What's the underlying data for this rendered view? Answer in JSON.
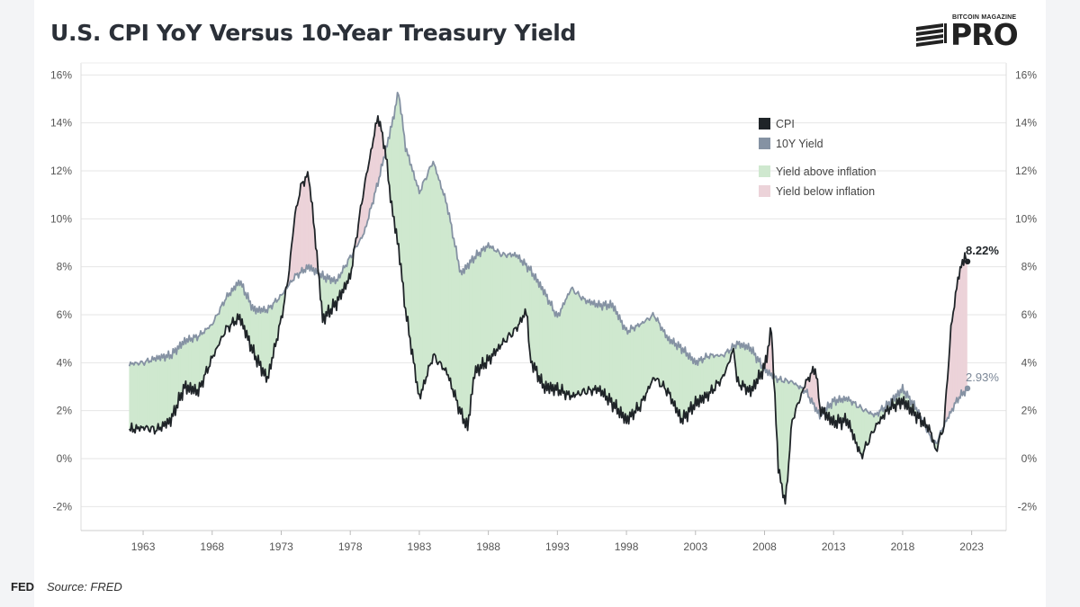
{
  "title": "U.S. CPI YoY Versus 10-Year Treasury Yield",
  "logo": {
    "top_text": "BITCOIN MAGAZINE",
    "main_text": "PRO",
    "icon": "bars-logo-icon"
  },
  "source": "Source: FRED",
  "edge_text": "FED",
  "colors": {
    "cpi": "#1f2428",
    "yield": "#8592a3",
    "above": "#cfe8cf",
    "below": "#ecd3d9"
  },
  "chart_data": {
    "type": "line",
    "title": "U.S. CPI YoY Versus 10-Year Treasury Yield",
    "xlabel": "",
    "ylabel": "",
    "xlim": [
      1958.5,
      2025.5
    ],
    "ylim": [
      -3,
      16.5
    ],
    "y_ticks": [
      -2,
      0,
      2,
      4,
      6,
      8,
      10,
      12,
      14,
      16
    ],
    "y_tick_labels": [
      "-2%",
      "0%",
      "2%",
      "4%",
      "6%",
      "8%",
      "10%",
      "12%",
      "14%",
      "16%"
    ],
    "x_ticks": [
      1963,
      1968,
      1973,
      1978,
      1983,
      1988,
      1993,
      1998,
      2003,
      2008,
      2013,
      2018,
      2023
    ],
    "x_tick_labels": [
      "1963",
      "1968",
      "1973",
      "1978",
      "1983",
      "1988",
      "1993",
      "1998",
      "2003",
      "2008",
      "2013",
      "2018",
      "2023"
    ],
    "grid": true,
    "legend": {
      "placement": "top-right",
      "entries": [
        {
          "label": "CPI",
          "kind": "line",
          "color": "#1f2428"
        },
        {
          "label": "10Y Yield",
          "kind": "line",
          "color": "#8592a3"
        },
        {
          "label": "Yield above inflation",
          "kind": "area",
          "color": "#cfe8cf"
        },
        {
          "label": "Yield below inflation",
          "kind": "area",
          "color": "#ecd3d9"
        }
      ]
    },
    "annotations": [
      {
        "text": "8.22%",
        "x": 2022.7,
        "y": 8.22,
        "series": "CPI"
      },
      {
        "text": "2.93%",
        "x": 2022.7,
        "y": 2.93,
        "series": "10Y Yield"
      }
    ],
    "series": [
      {
        "name": "CPI",
        "x": [
          1962,
          1963,
          1964,
          1965,
          1966,
          1967,
          1968,
          1969,
          1970,
          1971,
          1972,
          1973,
          1973.5,
          1974,
          1974.5,
          1975,
          1975.5,
          1976,
          1977,
          1978,
          1979,
          1979.5,
          1980,
          1980.5,
          1981,
          1981.5,
          1982,
          1983,
          1984,
          1985,
          1986,
          1986.5,
          1987,
          1988,
          1989,
          1990,
          1990.8,
          1991,
          1992,
          1993,
          1994,
          1995,
          1996,
          1997,
          1998,
          1999,
          2000,
          2001,
          2002,
          2003,
          2004,
          2005,
          2005.8,
          2006,
          2007,
          2008,
          2008.5,
          2009,
          2009.5,
          2010,
          2011,
          2011.7,
          2012,
          2013,
          2014,
          2015,
          2016,
          2017,
          2018,
          2019,
          2020,
          2020.4,
          2021,
          2021.5,
          2022,
          2022.5,
          2022.7
        ],
        "y": [
          1.2,
          1.3,
          1.2,
          1.6,
          3.0,
          2.8,
          4.2,
          5.4,
          5.9,
          4.4,
          3.3,
          5.8,
          7.5,
          10.2,
          11.5,
          11.8,
          9.0,
          5.8,
          6.5,
          7.6,
          11.3,
          12.8,
          14.3,
          13.0,
          10.5,
          8.8,
          6.2,
          2.5,
          4.3,
          3.6,
          1.9,
          1.3,
          3.6,
          4.1,
          4.8,
          5.4,
          6.2,
          4.2,
          3.0,
          2.9,
          2.6,
          2.8,
          2.9,
          2.3,
          1.6,
          2.2,
          3.4,
          2.8,
          1.6,
          2.3,
          2.7,
          3.4,
          4.6,
          3.2,
          2.8,
          3.8,
          5.4,
          -0.4,
          -1.9,
          1.6,
          3.2,
          3.8,
          2.1,
          1.5,
          1.6,
          0.1,
          1.3,
          2.1,
          2.4,
          1.8,
          1.2,
          0.3,
          1.4,
          5.4,
          7.5,
          8.5,
          8.22
        ]
      },
      {
        "name": "10Y Yield",
        "x": [
          1962,
          1963,
          1964,
          1965,
          1966,
          1967,
          1968,
          1969,
          1970,
          1971,
          1972,
          1973,
          1974,
          1975,
          1976,
          1977,
          1978,
          1979,
          1980,
          1981,
          1981.5,
          1982,
          1983,
          1984,
          1985,
          1986,
          1987,
          1988,
          1989,
          1990,
          1991,
          1992,
          1993,
          1994,
          1995,
          1996,
          1997,
          1998,
          1999,
          2000,
          2001,
          2002,
          2003,
          2004,
          2005,
          2006,
          2007,
          2008,
          2009,
          2010,
          2011,
          2012,
          2013,
          2014,
          2015,
          2016,
          2017,
          2018,
          2019,
          2020,
          2020.4,
          2021,
          2022,
          2022.7
        ],
        "y": [
          3.95,
          4.0,
          4.2,
          4.3,
          4.9,
          5.1,
          5.6,
          6.7,
          7.4,
          6.2,
          6.2,
          6.8,
          7.6,
          8.0,
          7.6,
          7.4,
          8.4,
          9.4,
          11.5,
          13.9,
          15.3,
          13.0,
          11.1,
          12.4,
          10.6,
          7.7,
          8.4,
          8.9,
          8.5,
          8.5,
          7.9,
          7.0,
          5.9,
          7.1,
          6.6,
          6.4,
          6.4,
          5.3,
          5.6,
          6.0,
          5.0,
          4.6,
          4.0,
          4.3,
          4.3,
          4.8,
          4.6,
          3.7,
          3.3,
          3.2,
          2.8,
          1.8,
          2.4,
          2.5,
          2.1,
          1.8,
          2.3,
          2.9,
          2.1,
          0.9,
          0.6,
          1.4,
          2.5,
          2.93
        ]
      }
    ]
  }
}
